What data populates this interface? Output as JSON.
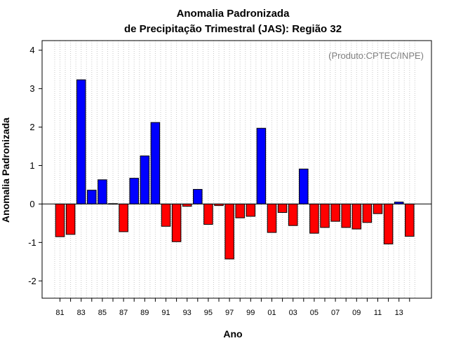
{
  "chart_data": {
    "type": "bar",
    "title": "Anomalia Padronizada",
    "subtitle": "de Precipitação Trimestral (JAS): Região 32",
    "xlabel": "Ano",
    "ylabel": "Anomalia Padronizada",
    "credit": "(Produto:CPTEC/INPE)",
    "ylim": [
      -2.45,
      4.25
    ],
    "yticks": [
      -2,
      -1,
      0,
      1,
      2,
      3,
      4
    ],
    "categories": [
      "1981",
      "1982",
      "1983",
      "1984",
      "1985",
      "1986",
      "1987",
      "1988",
      "1989",
      "1990",
      "1991",
      "1992",
      "1993",
      "1994",
      "1995",
      "1996",
      "1997",
      "1998",
      "1999",
      "2000",
      "2001",
      "2002",
      "2003",
      "2004",
      "2005",
      "2006",
      "2007",
      "2008",
      "2009",
      "2010",
      "2011",
      "2012",
      "2013",
      "2014"
    ],
    "xtick_labels": [
      "81",
      "",
      "83",
      "",
      "85",
      "",
      "87",
      "",
      "89",
      "",
      "91",
      "",
      "93",
      "",
      "95",
      "",
      "97",
      "",
      "99",
      "",
      "01",
      "",
      "03",
      "",
      "05",
      "",
      "07",
      "",
      "09",
      "",
      "11",
      "",
      "13",
      ""
    ],
    "values": [
      -0.85,
      -0.79,
      3.23,
      0.36,
      0.63,
      0.01,
      -0.72,
      0.67,
      1.25,
      2.12,
      -0.58,
      -0.98,
      -0.06,
      0.38,
      -0.53,
      -0.04,
      -1.43,
      -0.36,
      -0.32,
      1.97,
      -0.74,
      -0.22,
      -0.56,
      0.91,
      -0.76,
      -0.61,
      -0.45,
      -0.61,
      -0.65,
      -0.48,
      -0.25,
      -1.04,
      0.05,
      -0.84
    ],
    "positive_color": "#0000ff",
    "negative_color": "#ff0000",
    "grid": true
  }
}
